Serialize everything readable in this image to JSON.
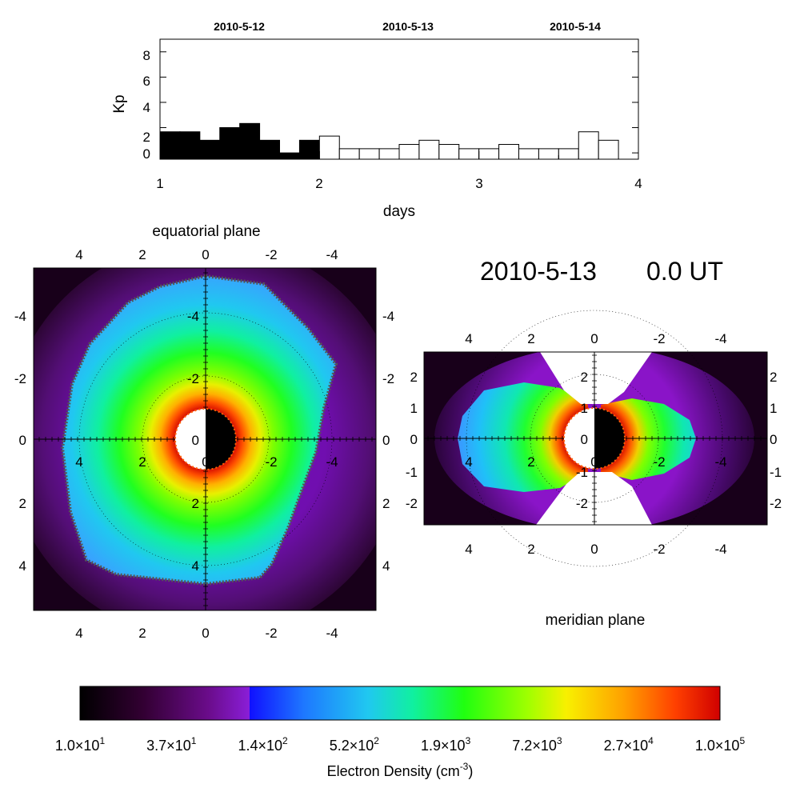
{
  "colors": {
    "background": "#ffffff",
    "axis": "#000000",
    "plasma_bg": "#1a0012",
    "earth_night": "#000000",
    "earth_day": "#ffffff"
  },
  "chart_data": [
    {
      "type": "bar",
      "ylabel": "Kp",
      "xlabel": "days",
      "xlim": [
        1,
        4
      ],
      "ylim": [
        -0.5,
        9
      ],
      "x_ticks": [
        "1",
        "2",
        "3",
        "4"
      ],
      "y_ticks": [
        "0",
        "2",
        "4",
        "6",
        "8"
      ],
      "top_dates": [
        "2010-5-12",
        "2010-5-13",
        "2010-5-14"
      ],
      "bin_width_days": 0.125,
      "step_x": [
        1.0,
        1.125,
        1.25,
        1.375,
        1.5,
        1.625,
        1.75,
        1.875,
        2.0,
        2.125,
        2.25,
        2.375,
        2.5,
        2.625,
        2.75,
        2.875,
        3.0,
        3.125,
        3.25,
        3.375,
        3.5,
        3.625,
        3.75
      ],
      "kp_values": [
        1.67,
        1.67,
        1.0,
        2.0,
        2.33,
        1.0,
        0.0,
        1.0,
        1.33,
        0.33,
        0.33,
        0.33,
        0.67,
        1.0,
        0.67,
        0.33,
        0.33,
        0.67,
        0.33,
        0.33,
        0.33,
        1.67,
        1.0
      ],
      "filled_until_day": 2.0
    },
    {
      "type": "heatmap",
      "title": "equatorial plane",
      "x_ticks_top": [
        "4",
        "2",
        "0",
        "-2",
        "-4"
      ],
      "x_ticks_bottom": [
        "4",
        "2",
        "0",
        "-2",
        "-4"
      ],
      "y_ticks": [
        "-4",
        "-2",
        "0",
        "2",
        "4"
      ],
      "inner_ticks_x": [
        "4",
        "2",
        "0",
        "-2",
        "-4"
      ],
      "inner_ticks_y": [
        "-4",
        "-2",
        "0",
        "2",
        "4"
      ],
      "xlim": [
        5.4,
        -5.4
      ],
      "ylim": [
        -5.4,
        5.4
      ],
      "plasmapause_radius_re": 4.7
    },
    {
      "type": "heatmap",
      "title": "meridian plane",
      "x_ticks_top": [
        "4",
        "2",
        "0",
        "-2",
        "-4"
      ],
      "x_ticks_bottom": [
        "4",
        "2",
        "0",
        "-2",
        "-4"
      ],
      "y_ticks": [
        "2",
        "1",
        "0",
        "-1",
        "-2"
      ],
      "inner_ticks_x": [
        "4",
        "2",
        "0",
        "-2",
        "-4"
      ],
      "inner_ticks_y": [
        "2",
        "1",
        "0",
        "-1",
        "-2"
      ],
      "xlim": [
        5.4,
        -5.4
      ],
      "ylim": [
        2.7,
        -2.7
      ]
    }
  ],
  "timestamp": {
    "date": "2010-5-13",
    "time": "0.0 UT"
  },
  "colorbar": {
    "scale": "log",
    "range": [
      10,
      100000
    ],
    "tick_labels": [
      "1.0×10",
      "3.7×10",
      "1.4×10",
      "5.2×10",
      "1.9×10",
      "7.2×10",
      "2.7×10",
      "1.0×10"
    ],
    "tick_exponents": [
      "1",
      "1",
      "2",
      "2",
      "3",
      "3",
      "4",
      "5"
    ],
    "label": "Electron Density (cm",
    "label_exp": "-3",
    "label_close": ")",
    "stops": [
      {
        "pos": 0.0,
        "color": "#000000"
      },
      {
        "pos": 0.1,
        "color": "#330033"
      },
      {
        "pos": 0.2,
        "color": "#6a0c8a"
      },
      {
        "pos": 0.265,
        "color": "#8a1ed8"
      },
      {
        "pos": 0.265,
        "color": "#1010ff"
      },
      {
        "pos": 0.35,
        "color": "#1e78ff"
      },
      {
        "pos": 0.45,
        "color": "#20c8f0"
      },
      {
        "pos": 0.52,
        "color": "#10f0a0"
      },
      {
        "pos": 0.6,
        "color": "#20ff10"
      },
      {
        "pos": 0.7,
        "color": "#a0ff00"
      },
      {
        "pos": 0.76,
        "color": "#f8f000"
      },
      {
        "pos": 0.85,
        "color": "#ffa000"
      },
      {
        "pos": 0.93,
        "color": "#ff4000"
      },
      {
        "pos": 1.0,
        "color": "#d00000"
      }
    ]
  }
}
